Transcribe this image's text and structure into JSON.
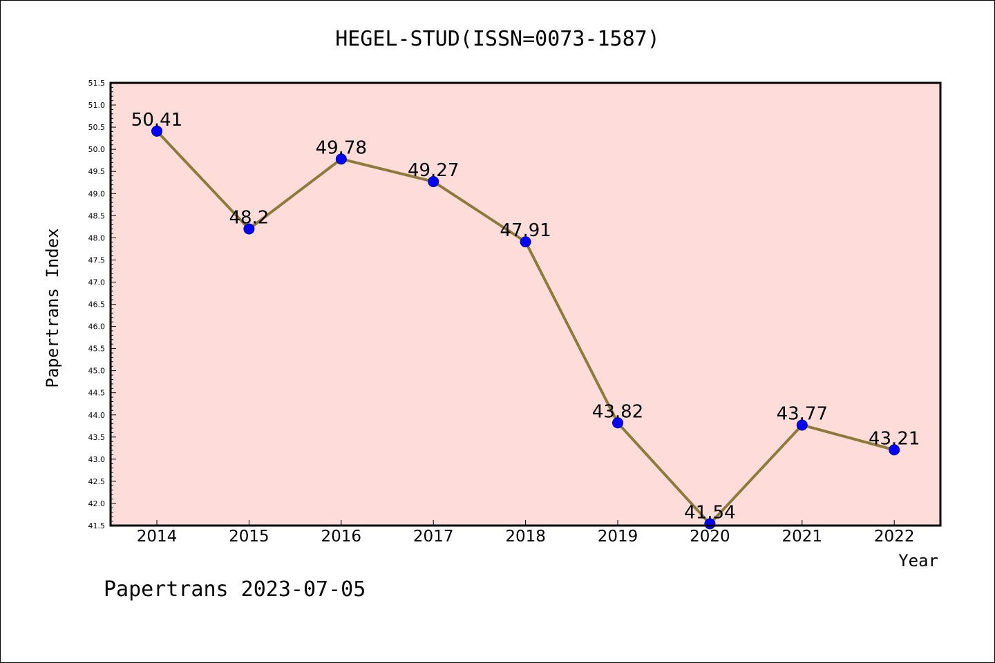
{
  "chart_data": {
    "type": "line",
    "title": "HEGEL-STUD(ISSN=0073-1587)",
    "xlabel": "Year",
    "ylabel": "Papertrans Index",
    "categories": [
      "2014",
      "2015",
      "2016",
      "2017",
      "2018",
      "2019",
      "2020",
      "2021",
      "2022"
    ],
    "series": [
      {
        "values": [
          50.41,
          48.2,
          49.78,
          49.27,
          47.91,
          43.82,
          41.54,
          43.77,
          43.21
        ],
        "data_labels": [
          "50.41",
          "48.2",
          "49.78",
          "49.27",
          "47.91",
          "43.82",
          "41.54",
          "43.77",
          "43.21"
        ]
      }
    ],
    "ylim": [
      41.5,
      51.5
    ],
    "yticks": [
      "41.5",
      "42.0",
      "42.5",
      "43.0",
      "43.5",
      "44.0",
      "44.5",
      "45.0",
      "45.5",
      "46.0",
      "46.5",
      "47.0",
      "47.5",
      "48.0",
      "48.5",
      "49.0",
      "49.5",
      "50.0",
      "50.5",
      "51.0",
      "51.5"
    ],
    "grid": false,
    "legend": "none",
    "colors": {
      "plot_background": "#fddcda",
      "line": "#8e7b3b",
      "marker": "#0000ff"
    }
  },
  "footer": "Papertrans 2023-07-05"
}
